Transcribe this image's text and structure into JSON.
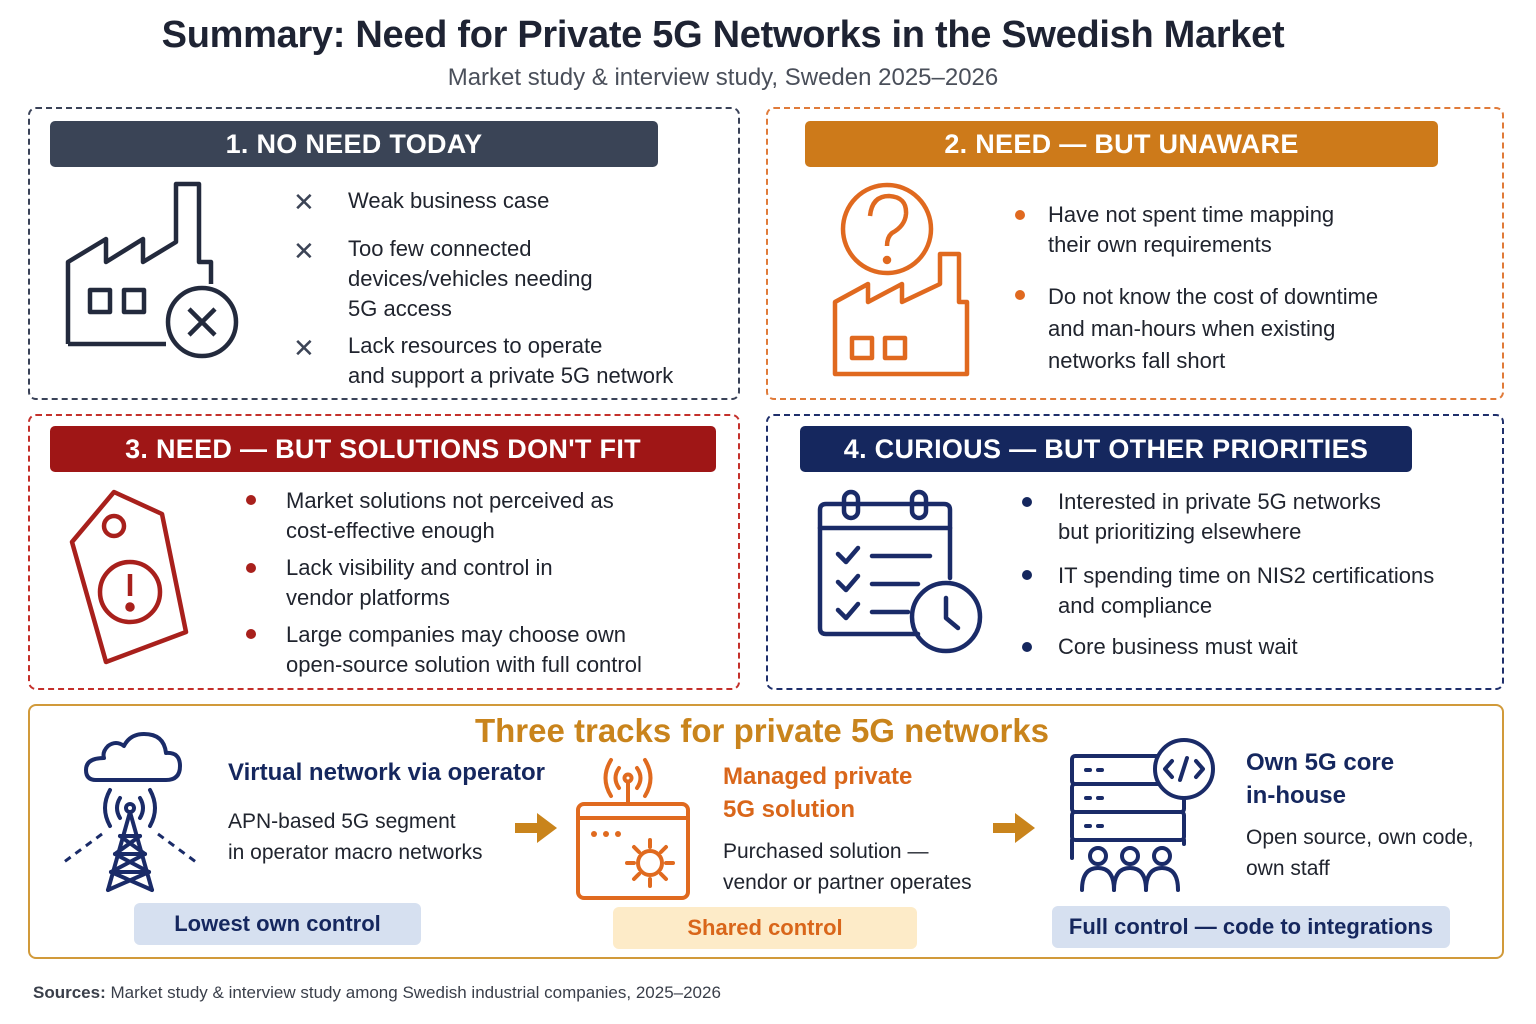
{
  "title": "Summary: Need for Private 5G Networks in the Swedish Market",
  "subtitle": "Market study & interview study, Sweden 2025–2026",
  "panels": [
    {
      "heading": "1. NO NEED TODAY",
      "color": "#3a4456",
      "icon": "factory-x-icon",
      "items": [
        "Weak business case",
        "Too few connected\ndevices/vehicles needing\n5G access",
        "Lack resources to operate\nand support a private 5G network"
      ]
    },
    {
      "heading": "2. NEED — BUT UNAWARE",
      "color": "#cd7a1a",
      "icon": "factory-question-icon",
      "items": [
        "Have not spent time mapping\ntheir own requirements",
        "Do not know the cost of downtime\nand man-hours when existing\nnetworks fall short"
      ]
    },
    {
      "heading": "3. NEED — BUT SOLUTIONS DON'T FIT",
      "color": "#9f1616",
      "icon": "price-tag-alert-icon",
      "items": [
        "Market solutions not perceived as\ncost-effective enough",
        "Lack visibility and control in\nvendor platforms",
        "Large companies may choose own\nopen-source solution with full control"
      ]
    },
    {
      "heading": "4. CURIOUS — BUT OTHER PRIORITIES",
      "color": "#15275e",
      "icon": "calendar-checklist-clock-icon",
      "items": [
        "Interested in private 5G networks\nbut prioritizing elsewhere",
        "IT spending time on NIS2 certifications\nand compliance",
        "Core business must wait"
      ]
    }
  ],
  "tracks": {
    "title": "Three tracks for private 5G networks",
    "items": [
      {
        "name": "Virtual network via operator",
        "description": "APN-based 5G segment\nin operator macro networks",
        "control": "Lowest own control",
        "icon": "cloud-tower-icon",
        "color": "#15275e",
        "pill_bg": "#d6e0f0"
      },
      {
        "name": "Managed private\n5G solution",
        "description": "Purchased solution —\nvendor or partner operates",
        "control": "Shared control",
        "icon": "managed-box-gear-icon",
        "color": "#d9661a",
        "pill_bg": "#fdebc8"
      },
      {
        "name": "Own 5G core\nin-house",
        "description": "Open source, own code,\nown staff",
        "control": "Full control — code to integrations",
        "icon": "server-code-team-icon",
        "color": "#15275e",
        "pill_bg": "#d6e0f0"
      }
    ]
  },
  "sources": {
    "label": "Sources:",
    "text": "Market study & interview study among Swedish industrial companies, 2025–2026"
  }
}
